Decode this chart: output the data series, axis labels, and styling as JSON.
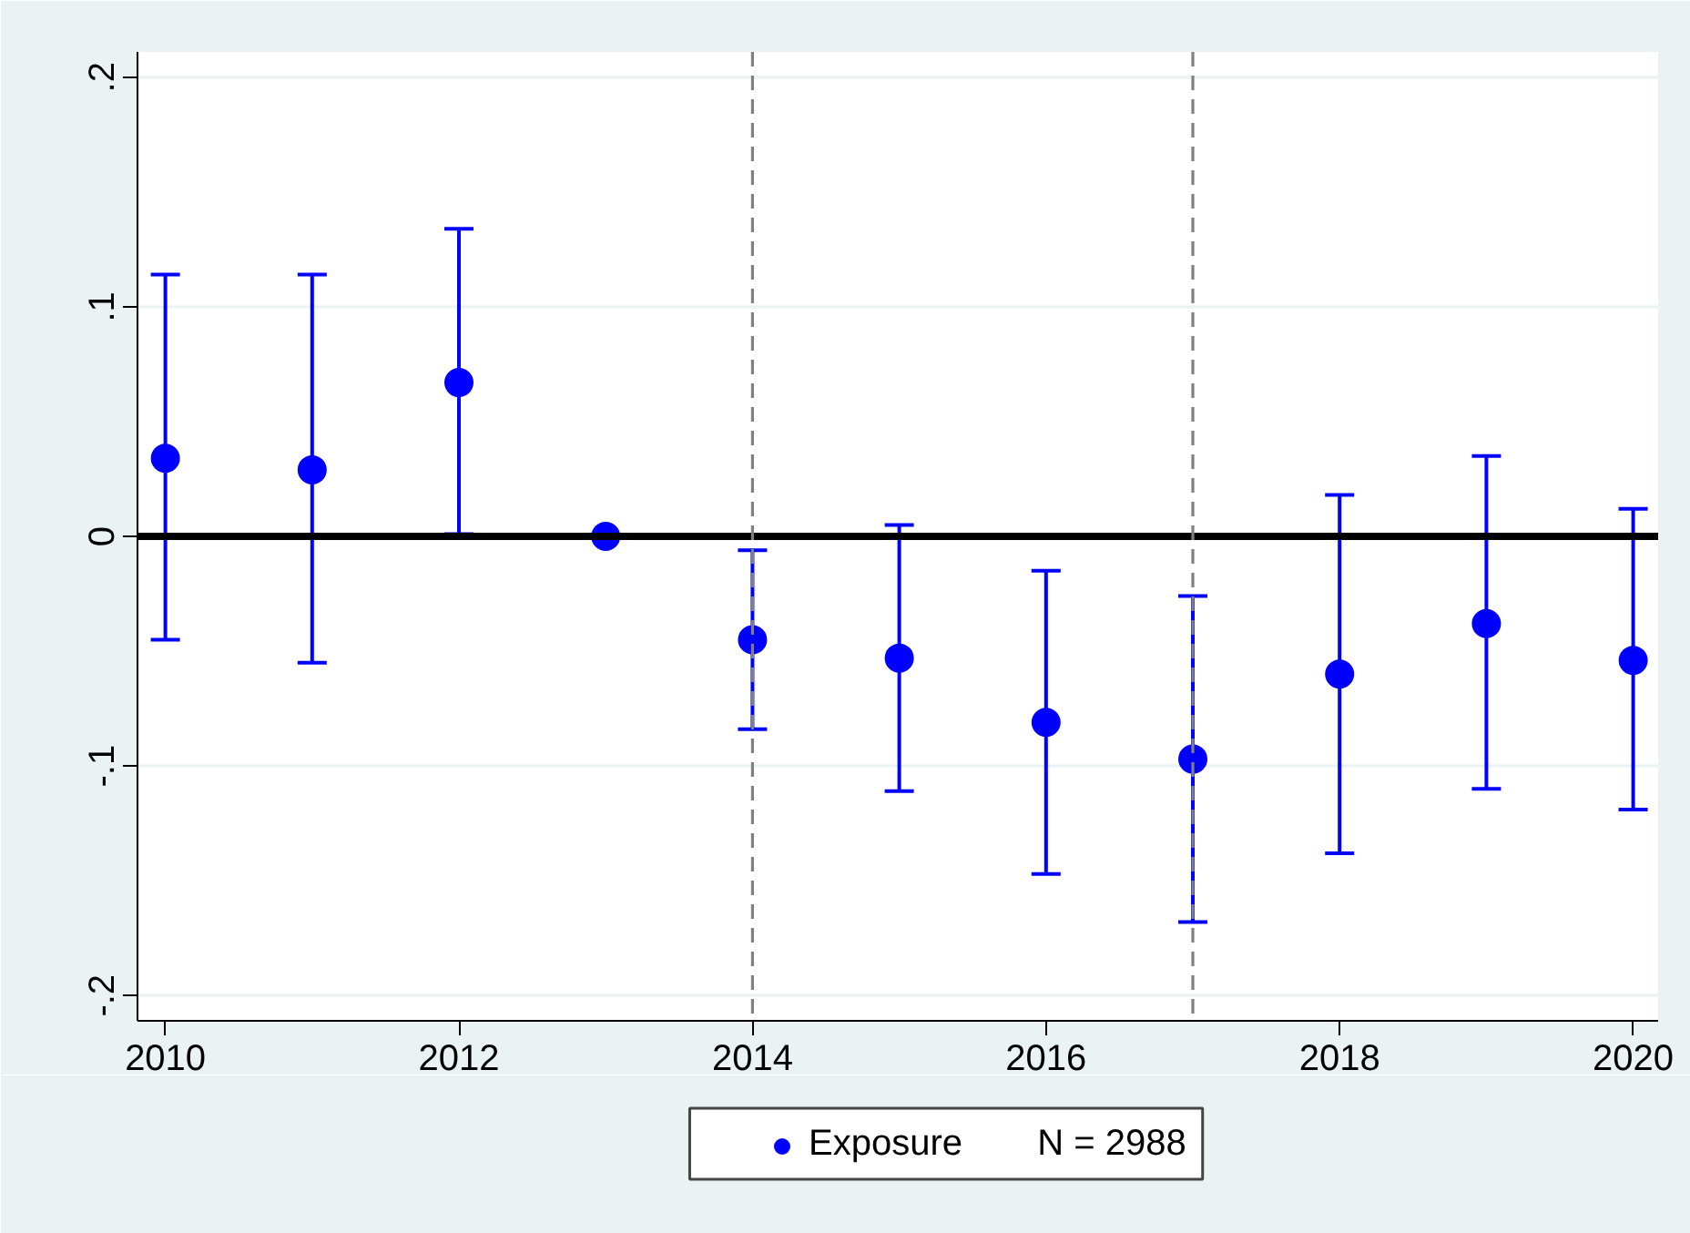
{
  "chart_data": {
    "type": "scatter",
    "marker": "circle",
    "x": [
      2010,
      2011,
      2012,
      2013,
      2014,
      2015,
      2016,
      2017,
      2018,
      2019,
      2020
    ],
    "series": [
      {
        "name": "Exposure",
        "color": "#0000ff",
        "values": [
          0.034,
          0.029,
          0.067,
          0,
          -0.045,
          -0.053,
          -0.081,
          -0.097,
          -0.06,
          -0.038,
          -0.054
        ],
        "errors": [
          [
            -0.045,
            0.114
          ],
          [
            -0.055,
            0.114
          ],
          [
            0.001,
            0.134
          ],
          null,
          [
            -0.084,
            -0.006
          ],
          [
            -0.111,
            0.005
          ],
          [
            -0.147,
            -0.015
          ],
          [
            -0.168,
            -0.026
          ],
          [
            -0.138,
            0.018
          ],
          [
            -0.11,
            0.035
          ],
          [
            -0.119,
            0.012
          ]
        ]
      }
    ],
    "xlim": [
      2009.81,
      2020.17
    ],
    "xticks": [
      2010,
      2012,
      2014,
      2016,
      2018,
      2020
    ],
    "ylim": [
      -0.211,
      0.211
    ],
    "yticks": [
      {
        "value": -0.2,
        "label": "-.2"
      },
      {
        "value": -0.1,
        "label": "-.1"
      },
      0,
      {
        "value": 0.1,
        "label": ".1"
      },
      {
        "value": 0.2,
        "label": ".2"
      }
    ],
    "grid": "y",
    "legend": "bottom",
    "ref_lines": [
      {
        "axis": "y",
        "value": 0,
        "color": "#000000",
        "line_style": "solid"
      },
      {
        "axis": "x",
        "value": 2014,
        "color": "#808080",
        "line_style": "dashed"
      },
      {
        "axis": "x",
        "value": 2017,
        "color": "#808080",
        "line_style": "dashed"
      }
    ],
    "legend_title": "N = 2988"
  }
}
